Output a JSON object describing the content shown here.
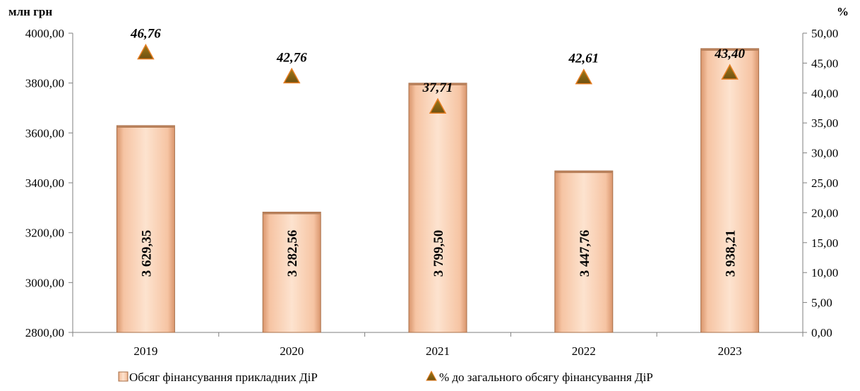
{
  "chart_data": {
    "type": "bar",
    "categories": [
      "2019",
      "2020",
      "2021",
      "2022",
      "2023"
    ],
    "series": [
      {
        "name": "Обсяг фінансування прикладних ДіР",
        "type": "bar",
        "axis": "left",
        "values": [
          3629.35,
          3282.56,
          3799.5,
          3447.76,
          3938.21
        ],
        "labels": [
          "3 629,35",
          "3 282,56",
          "3 799,50",
          "3 447,76",
          "3 938,21"
        ],
        "color": "#f6c4a3"
      },
      {
        "name": "% до загального обсягу фінансування ДіР",
        "type": "scatter",
        "axis": "right",
        "values": [
          46.76,
          42.76,
          37.71,
          42.61,
          43.4
        ],
        "labels": [
          "46,76",
          "42,76",
          "37,71",
          "42,61",
          "43,40"
        ],
        "color": "#8b6914"
      }
    ],
    "left_axis": {
      "unit_label": "млн грн",
      "ylim": [
        2800,
        4000
      ],
      "ticks": [
        "2800,00",
        "3000,00",
        "3200,00",
        "3400,00",
        "3600,00",
        "3800,00",
        "4000,00"
      ]
    },
    "right_axis": {
      "unit_label": "%",
      "ylim": [
        0,
        50
      ],
      "ticks": [
        "0,00",
        "5,00",
        "10,00",
        "15,00",
        "20,00",
        "25,00",
        "30,00",
        "35,00",
        "40,00",
        "45,00",
        "50,00"
      ]
    },
    "grid": false,
    "legend_position": "bottom"
  }
}
